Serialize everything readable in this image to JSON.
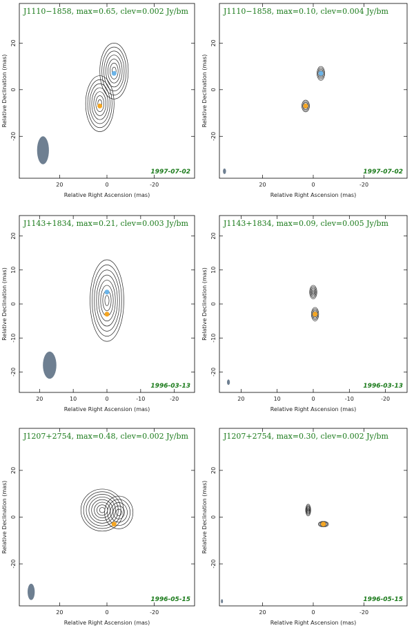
{
  "chart_data": [
    {
      "type": "contour",
      "title": "J1110−1858, max=0.65, clev=0.002 Jy/bm",
      "date": "1997-07-02",
      "xlabel": "Relative Right Ascension (mas)",
      "ylabel": "Relative Declination (mas)",
      "xlim": [
        37,
        -37
      ],
      "ylim": [
        -38,
        37
      ],
      "xticks": [
        20,
        0,
        -20
      ],
      "yticks": [
        -20,
        0,
        20
      ],
      "sources": [
        {
          "x": -3,
          "y": 8,
          "rx": 6,
          "ry": 12,
          "n": 7
        },
        {
          "x": 3,
          "y": -6,
          "rx": 6,
          "ry": 12,
          "n": 7
        }
      ],
      "markers": [
        {
          "x": 3,
          "y": -7,
          "color": "#f5a623"
        },
        {
          "x": -3,
          "y": 7,
          "color": "#6cb4e8"
        }
      ],
      "beam": {
        "x": 27,
        "y": -26,
        "rx": 2.5,
        "ry": 6,
        "color": "#6e7f91"
      }
    },
    {
      "type": "contour",
      "title": "J1110−1858, max=0.10, clev=0.004 Jy/bm",
      "date": "1997-07-02",
      "xlabel": "Relative Right Ascension (mas)",
      "ylabel": "Relative Declination (mas)",
      "xlim": [
        37,
        -37
      ],
      "ylim": [
        -38,
        37
      ],
      "xticks": [
        20,
        0,
        -20
      ],
      "yticks": [
        -20,
        0,
        20
      ],
      "sources": [
        {
          "x": -3,
          "y": 7,
          "rx": 1.5,
          "ry": 3,
          "n": 5
        },
        {
          "x": 3,
          "y": -7,
          "rx": 1.5,
          "ry": 2.5,
          "n": 5
        }
      ],
      "markers": [
        {
          "x": 3,
          "y": -7,
          "color": "#f5a623"
        },
        {
          "x": -3,
          "y": 7,
          "color": "#6cb4e8"
        }
      ],
      "beam": {
        "x": 35,
        "y": -35,
        "rx": 0.6,
        "ry": 1.2,
        "color": "#6e7f91"
      }
    },
    {
      "type": "contour",
      "title": "J1143+1834, max=0.21, clev=0.003 Jy/bm",
      "date": "1996-03-13",
      "xlabel": "Relative Right Ascension (mas)",
      "ylabel": "Relative Declination (mas)",
      "xlim": [
        26,
        -26
      ],
      "ylim": [
        -26,
        26
      ],
      "xticks": [
        20,
        10,
        0,
        -10,
        -20
      ],
      "yticks": [
        -20,
        -10,
        0,
        10,
        20
      ],
      "sources": [
        {
          "x": 0,
          "y": 1,
          "rx": 5,
          "ry": 12,
          "n": 8
        }
      ],
      "markers": [
        {
          "x": 0,
          "y": -3,
          "color": "#f5a623"
        },
        {
          "x": 0,
          "y": 3.5,
          "color": "#6cb4e8"
        }
      ],
      "beam": {
        "x": 17,
        "y": -18,
        "rx": 2,
        "ry": 4,
        "color": "#6e7f91"
      }
    },
    {
      "type": "contour",
      "title": "J1143+1834, max=0.09, clev=0.005 Jy/bm",
      "date": "1996-03-13",
      "xlabel": "Relative Right Ascension (mas)",
      "ylabel": "Relative Declination (mas)",
      "xlim": [
        26,
        -26
      ],
      "ylim": [
        -26,
        26
      ],
      "xticks": [
        20,
        10,
        0,
        -10,
        -20
      ],
      "yticks": [
        -20,
        -10,
        0,
        10,
        20
      ],
      "sources": [
        {
          "x": 0,
          "y": 3.5,
          "rx": 1,
          "ry": 2,
          "n": 5
        },
        {
          "x": -0.5,
          "y": -3,
          "rx": 1,
          "ry": 2,
          "n": 5
        }
      ],
      "markers": [
        {
          "x": -0.5,
          "y": -3,
          "color": "#f5a623"
        }
      ],
      "beam": {
        "x": 23.5,
        "y": -23,
        "rx": 0.4,
        "ry": 0.8,
        "color": "#6e7f91"
      }
    },
    {
      "type": "contour",
      "title": "J1207+2754, max=0.48, clev=0.002 Jy/bm",
      "date": "1996-05-15",
      "xlabel": "Relative Right Ascension (mas)",
      "ylabel": "Relative Declination (mas)",
      "xlim": [
        37,
        -37
      ],
      "ylim": [
        -38,
        38
      ],
      "xticks": [
        20,
        0,
        -20
      ],
      "yticks": [
        -20,
        0,
        20
      ],
      "sources": [
        {
          "x": 2,
          "y": 3,
          "rx": 9,
          "ry": 9,
          "n": 8
        },
        {
          "x": -5,
          "y": 2,
          "rx": 6,
          "ry": 7,
          "n": 5
        }
      ],
      "markers": [
        {
          "x": -3,
          "y": -3,
          "color": "#f5a623"
        }
      ],
      "beam": {
        "x": 32,
        "y": -32,
        "rx": 1.5,
        "ry": 3.5,
        "color": "#6e7f91"
      }
    },
    {
      "type": "contour",
      "title": "J1207+2754, max=0.30, clev=0.002 Jy/bm",
      "date": "1996-05-15",
      "xlabel": "Relative Right Ascension (mas)",
      "ylabel": "Relative Declination (mas)",
      "xlim": [
        37,
        -37
      ],
      "ylim": [
        -38,
        38
      ],
      "xticks": [
        20,
        0,
        -20
      ],
      "yticks": [
        -20,
        0,
        20
      ],
      "sources": [
        {
          "x": 2,
          "y": 3,
          "rx": 1,
          "ry": 2.5,
          "n": 5
        },
        {
          "x": -4,
          "y": -3,
          "rx": 2,
          "ry": 1.2,
          "n": 5
        }
      ],
      "markers": [
        {
          "x": -4,
          "y": -3,
          "color": "#f5a623"
        }
      ],
      "beam": {
        "x": 36,
        "y": -36,
        "rx": 0.4,
        "ry": 0.9,
        "color": "#6e7f91"
      }
    }
  ]
}
